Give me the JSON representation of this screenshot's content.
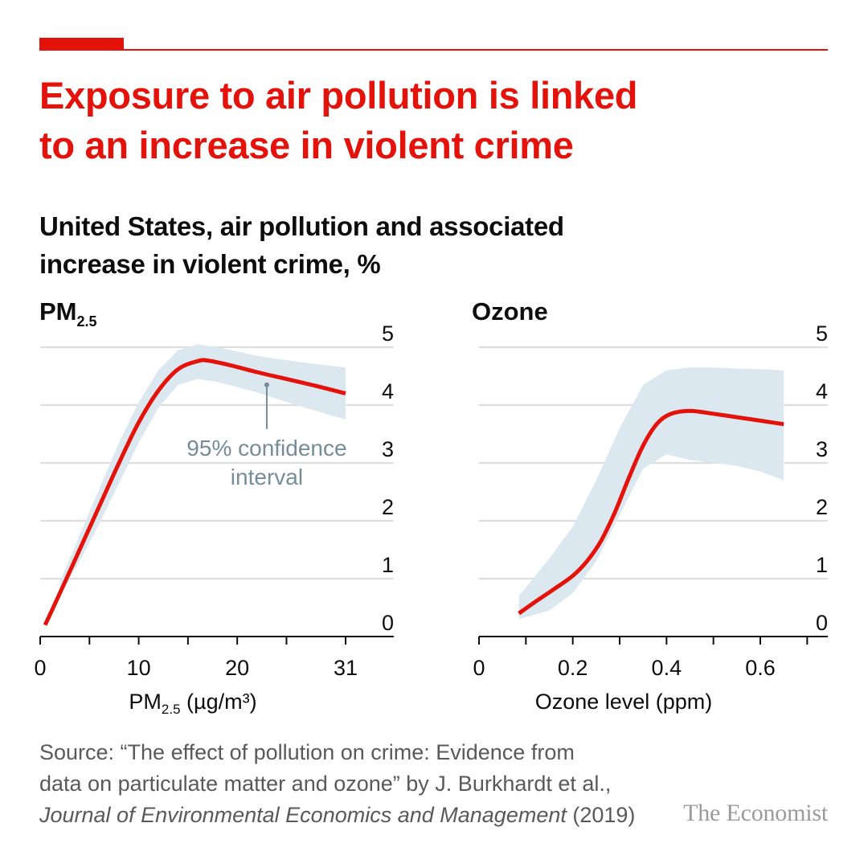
{
  "header": {
    "title_line1": "Exposure to air pollution is linked",
    "title_line2": "to an increase in violent crime",
    "subtitle_line1": "United States, air pollution and associated",
    "subtitle_line2": "increase in violent crime, %"
  },
  "colors": {
    "accent": "#e3120b",
    "band": "#dce8ef",
    "annotation": "#758d99",
    "grid": "#d0d0d0"
  },
  "chart_data": [
    {
      "type": "line",
      "panel_title": "PM",
      "panel_title_sub": "2.5",
      "xlabel": "PM",
      "xlabel_sub": "2.5",
      "xlabel_rest": " (µg/m³)",
      "xlim": [
        0,
        31
      ],
      "xticks": [
        0,
        10,
        20,
        31
      ],
      "xtick_labels": [
        "0",
        "10",
        "20",
        "31"
      ],
      "xminor": [
        0,
        5,
        10,
        15,
        20,
        25,
        31
      ],
      "ylim": [
        0,
        5
      ],
      "yticks": [
        0,
        1,
        2,
        3,
        4,
        5
      ],
      "ytick_labels": [
        "0",
        "1",
        "2",
        "3",
        "4",
        "5"
      ],
      "grid": true,
      "series": [
        {
          "x": [
            0.5,
            2,
            4,
            6,
            8,
            10,
            12,
            14,
            16,
            17,
            19,
            22,
            25,
            28,
            31
          ],
          "y": [
            0.2,
            0.75,
            1.5,
            2.25,
            3.0,
            3.7,
            4.25,
            4.62,
            4.76,
            4.77,
            4.7,
            4.57,
            4.45,
            4.33,
            4.2
          ]
        }
      ],
      "band": {
        "x": [
          2,
          4,
          6,
          8,
          10,
          12,
          14,
          16,
          18,
          22,
          26,
          31
        ],
        "lower": [
          0.7,
          1.3,
          1.95,
          2.65,
          3.35,
          3.95,
          4.35,
          4.45,
          4.4,
          4.22,
          4.0,
          3.75
        ],
        "upper": [
          0.95,
          1.75,
          2.55,
          3.35,
          4.05,
          4.6,
          4.95,
          5.05,
          5.0,
          4.85,
          4.75,
          4.65
        ]
      },
      "annotation": {
        "line1": "95% confidence",
        "line2": "interval",
        "point": [
          23,
          4.35
        ]
      }
    },
    {
      "type": "line",
      "panel_title": "Ozone",
      "xlabel": "Ozone level (ppm)",
      "xlim": [
        0,
        0.75
      ],
      "xticks": [
        0,
        0.2,
        0.4,
        0.6
      ],
      "xtick_labels": [
        "0",
        "0.2",
        "0.4",
        "0.6"
      ],
      "xminor": [
        0,
        0.1,
        0.2,
        0.3,
        0.4,
        0.5,
        0.6,
        0.7
      ],
      "ylim": [
        0,
        5
      ],
      "yticks": [
        0,
        1,
        2,
        3,
        4,
        5
      ],
      "ytick_labels": [
        "0",
        "1",
        "2",
        "3",
        "4",
        "5"
      ],
      "grid": true,
      "series": [
        {
          "x": [
            0.085,
            0.12,
            0.16,
            0.2,
            0.23,
            0.26,
            0.29,
            0.32,
            0.35,
            0.38,
            0.41,
            0.45,
            0.5,
            0.55,
            0.6,
            0.65
          ],
          "y": [
            0.4,
            0.6,
            0.82,
            1.05,
            1.3,
            1.65,
            2.15,
            2.75,
            3.3,
            3.68,
            3.85,
            3.9,
            3.85,
            3.79,
            3.73,
            3.67
          ]
        }
      ],
      "band": {
        "x": [
          0.085,
          0.15,
          0.2,
          0.25,
          0.3,
          0.35,
          0.4,
          0.45,
          0.5,
          0.55,
          0.6,
          0.65
        ],
        "lower": [
          0.3,
          0.45,
          0.75,
          1.3,
          2.1,
          2.9,
          3.15,
          3.05,
          3.0,
          2.95,
          2.85,
          2.7
        ],
        "upper": [
          0.7,
          1.35,
          1.9,
          2.7,
          3.6,
          4.35,
          4.6,
          4.65,
          4.65,
          4.63,
          4.62,
          4.6
        ]
      }
    }
  ],
  "source": {
    "line1": "Source: “The effect of pollution on crime: Evidence from",
    "line2": "data on particulate matter and ozone” by J. Burkhardt et al.,",
    "journal": "Journal of Environmental Economics and Management",
    "year": " (2019)"
  },
  "brand": "The Economist"
}
